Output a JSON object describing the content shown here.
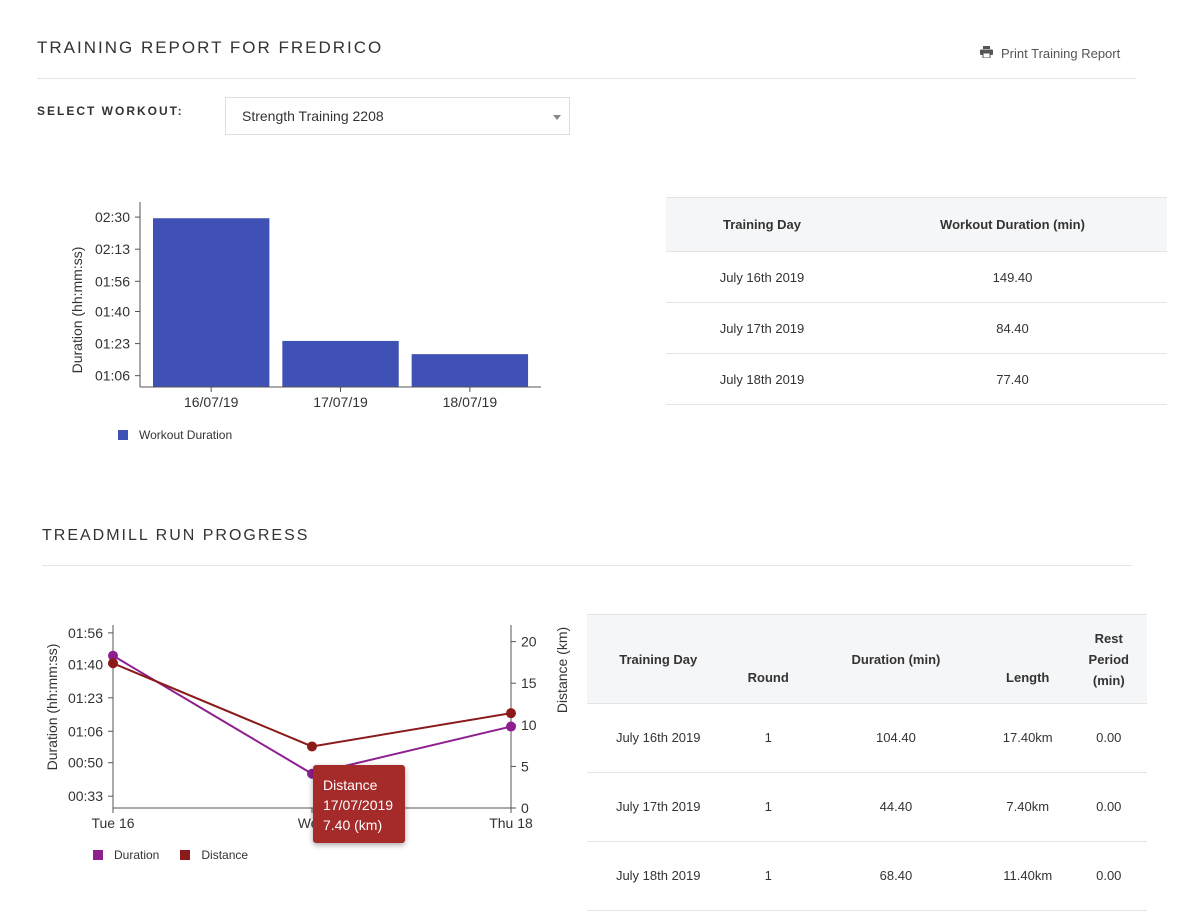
{
  "report": {
    "title": "TRAINING REPORT FOR FREDRICO",
    "print_label": "Print Training Report",
    "select_label": "SELECT WORKOUT:",
    "selected_workout": "Strength Training 2208"
  },
  "workout_table": {
    "headers": [
      "Training Day",
      "Workout Duration (min)"
    ],
    "rows": [
      [
        "July 16th 2019",
        "149.40"
      ],
      [
        "July 17th 2019",
        "84.40"
      ],
      [
        "July 18th 2019",
        "77.40"
      ]
    ]
  },
  "treadmill": {
    "title": "TREADMILL RUN PROGRESS",
    "headers": [
      "Training Day",
      "Round",
      "Duration (min)",
      "Length",
      "Rest Period (min)"
    ],
    "rows": [
      [
        "July 16th 2019",
        "1",
        "104.40",
        "17.40km",
        "0.00"
      ],
      [
        "July 17th 2019",
        "1",
        "44.40",
        "7.40km",
        "0.00"
      ],
      [
        "July 18th 2019",
        "1",
        "68.40",
        "11.40km",
        "0.00"
      ]
    ],
    "tooltip": {
      "series": "Distance",
      "date": "17/07/2019",
      "value": "7.40 (km)"
    }
  },
  "colors": {
    "bar": "#3f51b5",
    "duration_line": "#8e1f8e",
    "distance_line": "#8b1a1a",
    "tooltip_bg": "#a52a2a"
  },
  "chart_data": [
    {
      "type": "bar",
      "categories": [
        "16/07/19",
        "17/07/19",
        "18/07/19"
      ],
      "values": [
        149.4,
        84.4,
        77.4
      ],
      "value_units": "minutes",
      "ylabel": "Duration (hh:mm:ss)",
      "yticks": [
        "01:06",
        "01:23",
        "01:40",
        "01:56",
        "02:13",
        "02:30"
      ],
      "ytick_values": [
        66,
        83,
        100,
        116,
        133,
        150
      ],
      "ylim": [
        60,
        158
      ],
      "legend": [
        "Workout Duration"
      ],
      "legend_position": "bottom-left",
      "grid": false
    },
    {
      "type": "line",
      "x": [
        "Tue 16",
        "Wed 17",
        "Thu 18"
      ],
      "xticks": [
        "Tue 16",
        "Wed",
        "Thu 18"
      ],
      "series": [
        {
          "name": "Duration",
          "values": [
            104.4,
            44.4,
            68.4
          ],
          "axis": "left",
          "units": "minutes"
        },
        {
          "name": "Distance",
          "values": [
            17.4,
            7.4,
            11.4
          ],
          "axis": "right",
          "units": "km"
        }
      ],
      "ylabel_left": "Duration (hh:mm:ss)",
      "yticks_left": [
        "00:33",
        "00:50",
        "01:06",
        "01:23",
        "01:40",
        "01:56"
      ],
      "ytick_values_left": [
        33,
        50,
        66,
        83,
        100,
        116
      ],
      "ylim_left": [
        27,
        120
      ],
      "ylabel_right": "Distance (km)",
      "yticks_right": [
        "0",
        "5",
        "10",
        "15",
        "20"
      ],
      "ytick_values_right": [
        0,
        5,
        10,
        15,
        20
      ],
      "ylim_right": [
        0,
        22
      ],
      "legend": [
        "Duration",
        "Distance"
      ],
      "legend_position": "bottom-left",
      "grid": false
    }
  ]
}
